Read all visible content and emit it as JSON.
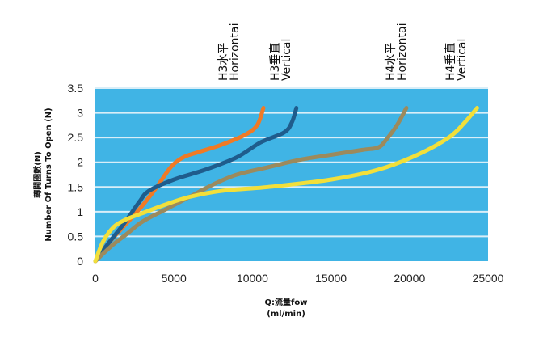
{
  "chart_data": {
    "type": "line",
    "title": "",
    "xlabel_line1": "Q:流量fow",
    "xlabel_line2": "(ml/min)",
    "ylabel_line1": "轉開圈數(N)",
    "ylabel_line2": "Number Of Turns To Open (N)",
    "xlim": [
      0,
      25000
    ],
    "ylim": [
      0,
      3.5
    ],
    "x_ticks": [
      "0",
      "5000",
      "10000",
      "15000",
      "20000",
      "25000"
    ],
    "y_ticks": [
      "0",
      "0.5",
      "1",
      "1.5",
      "2",
      "2.5",
      "3",
      "3.5"
    ],
    "x_tick_values": [
      0,
      5000,
      10000,
      15000,
      20000,
      25000
    ],
    "y_tick_values": [
      0,
      0.5,
      1,
      1.5,
      2,
      2.5,
      3,
      3.5
    ],
    "grid": "horizontal",
    "colors": {
      "plot_bg": "#40b4e5",
      "grid": "#d9eef8"
    },
    "series": [
      {
        "name_line1": "H3水平",
        "name_line2": "Horizontai",
        "color": "#f07a25",
        "x": [
          0,
          800,
          1800,
          2800,
          3800,
          4800,
          5600,
          6500,
          8000,
          9500,
          10300,
          10700
        ],
        "y": [
          0,
          0.35,
          0.7,
          1.05,
          1.45,
          1.9,
          2.1,
          2.2,
          2.35,
          2.55,
          2.75,
          3.1
        ]
      },
      {
        "name_line1": "H3垂直",
        "name_line2": "Vertical",
        "color": "#1f5c8c",
        "x": [
          0,
          800,
          1800,
          2800,
          3400,
          5000,
          7000,
          9000,
          10500,
          12000,
          12500,
          12800
        ],
        "y": [
          0,
          0.35,
          0.75,
          1.2,
          1.42,
          1.65,
          1.85,
          2.1,
          2.4,
          2.6,
          2.8,
          3.1
        ]
      },
      {
        "name_line1": "H4水平",
        "name_line2": "Horizontai",
        "color": "#9c8a5c",
        "x": [
          0,
          1000,
          2000,
          3000,
          4500,
          6000,
          7500,
          9000,
          11000,
          13000,
          15000,
          17000,
          18000,
          18500,
          19200,
          19800
        ],
        "y": [
          0,
          0.3,
          0.55,
          0.8,
          1.05,
          1.3,
          1.55,
          1.75,
          1.9,
          2.05,
          2.15,
          2.25,
          2.3,
          2.45,
          2.75,
          3.1
        ]
      },
      {
        "name_line1": "H4垂直",
        "name_line2": "Vertical",
        "color": "#f2df3a",
        "x": [
          0,
          500,
          1200,
          2000,
          3000,
          4500,
          6000,
          8000,
          11000,
          15000,
          18000,
          20500,
          22500,
          23500,
          24300
        ],
        "y": [
          0,
          0.4,
          0.7,
          0.85,
          0.97,
          1.15,
          1.3,
          1.42,
          1.5,
          1.65,
          1.85,
          2.15,
          2.5,
          2.8,
          3.1
        ]
      }
    ]
  }
}
